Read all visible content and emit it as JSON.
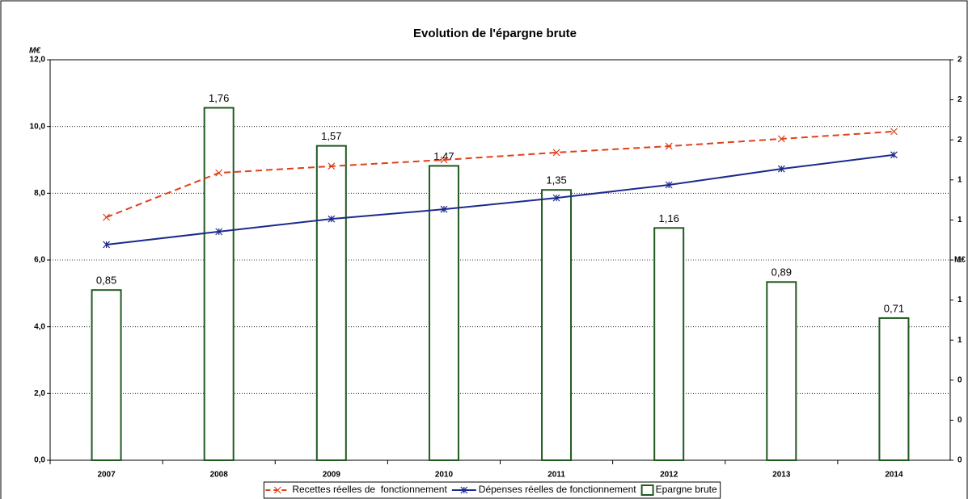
{
  "chart_data": {
    "type": "combo",
    "title": "Evolution de l'épargne brute",
    "ylabel": "M€",
    "y2label": "M€",
    "categories": [
      "2007",
      "2008",
      "2009",
      "2010",
      "2011",
      "2012",
      "2013",
      "2014"
    ],
    "ylim": [
      0,
      12
    ],
    "yticks": [
      {
        "value": 0,
        "label": "0,0"
      },
      {
        "value": 2,
        "label": "2,0"
      },
      {
        "value": 4,
        "label": "4,0"
      },
      {
        "value": 6,
        "label": "6,0"
      },
      {
        "value": 8,
        "label": "8,0"
      },
      {
        "value": 10,
        "label": "10,0"
      },
      {
        "value": 12,
        "label": "12,0"
      }
    ],
    "y2lim": [
      0,
      2
    ],
    "y2ticks": [
      {
        "value": 0,
        "label": "0"
      },
      {
        "value": 0.2,
        "label": "0"
      },
      {
        "value": 0.4,
        "label": "0"
      },
      {
        "value": 0.6,
        "label": "1"
      },
      {
        "value": 0.8,
        "label": "1"
      },
      {
        "value": 1.0,
        "label": "1"
      },
      {
        "value": 1.2,
        "label": "1"
      },
      {
        "value": 1.4,
        "label": "1"
      },
      {
        "value": 1.6,
        "label": "2"
      },
      {
        "value": 1.8,
        "label": "2"
      },
      {
        "value": 2.0,
        "label": "2"
      }
    ],
    "grid": true,
    "legend": "bottom",
    "series": [
      {
        "name": "Recettes réelles de  fonctionnement",
        "type": "line",
        "dash": true,
        "marker": "x",
        "color": "#e0401a",
        "values": [
          7.28,
          8.61,
          8.81,
          9.0,
          9.22,
          9.41,
          9.63,
          9.85
        ]
      },
      {
        "name": "Dépenses réelles de fonctionnement",
        "type": "line",
        "dash": false,
        "marker": "star",
        "color": "#1c2a8c",
        "values": [
          6.46,
          6.85,
          7.23,
          7.52,
          7.86,
          8.25,
          8.73,
          9.15
        ]
      },
      {
        "name": "Epargne brute",
        "type": "bar",
        "axis": "y2",
        "color": "#1f5a1f",
        "values": [
          0.85,
          1.76,
          1.57,
          1.47,
          1.35,
          1.16,
          0.89,
          0.71
        ],
        "value_labels": [
          "0,85",
          "1,76",
          "1,57",
          "1,47",
          "1,35",
          "1,16",
          "0,89",
          "0,71"
        ]
      }
    ]
  }
}
